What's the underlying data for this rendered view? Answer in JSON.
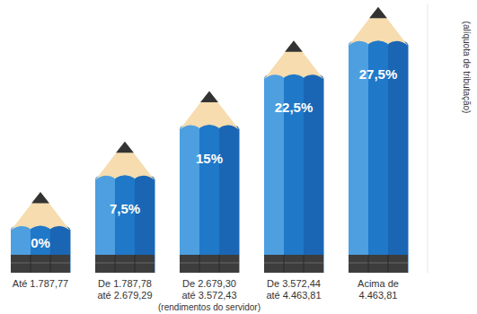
{
  "chart_data": {
    "type": "bar",
    "categories": [
      "Até 1.787,77",
      "De 1.787,78\naté 2.679,29",
      "De 2.679,30\naté 3.572,43",
      "De 3.572,44\naté 4.463,81",
      "Acima de\n4.463,81"
    ],
    "values": [
      0,
      7.5,
      15,
      22.5,
      27.5
    ],
    "value_labels": [
      "0%",
      "7,5%",
      "15%",
      "22,5%",
      "27,5%"
    ],
    "x_label": "(rendimentos do servidor)",
    "y_label": "(alíquota de tributação)",
    "color": "#1f78c8",
    "ylim": [
      -12,
      28
    ],
    "data_labels": true,
    "tick_labels": false,
    "grid": false
  }
}
